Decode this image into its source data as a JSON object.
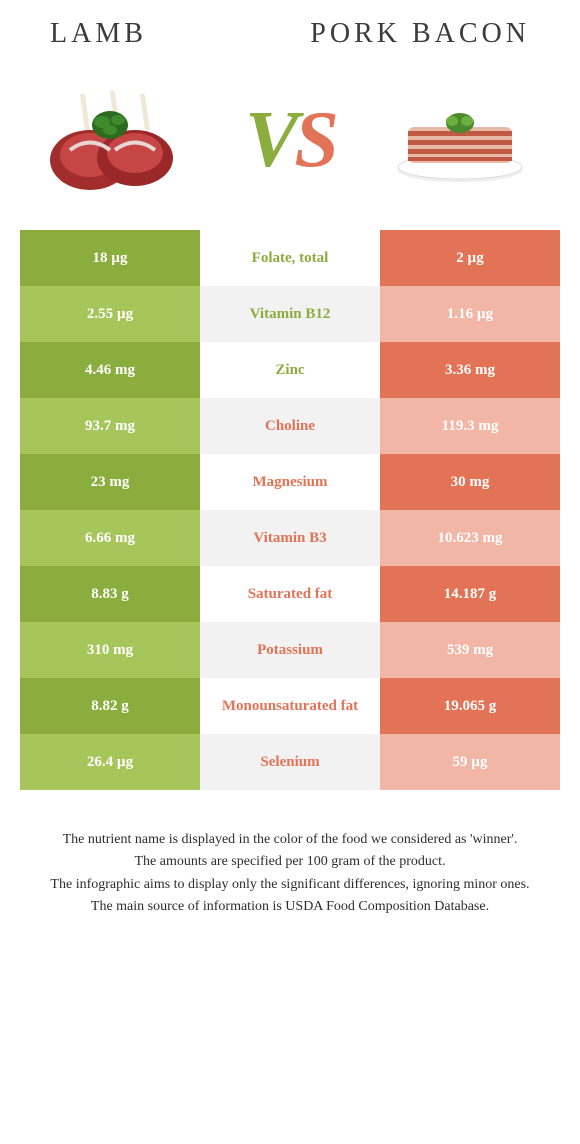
{
  "header": {
    "left_title": "Lamb",
    "right_title": "Pork Bacon"
  },
  "vs": {
    "v": "V",
    "s": "S"
  },
  "colors": {
    "left_main": "#8aad3d",
    "left_alt": "#a6c65b",
    "right_main": "#e37356",
    "right_alt": "#f2b6a6",
    "mid_alt": "#f2f2f2",
    "mid_main": "#ffffff",
    "mid_text_left": "#8aad3d",
    "mid_text_right": "#e37356"
  },
  "rows": [
    {
      "left": "18 µg",
      "label": "Folate, total",
      "right": "2 µg",
      "winner": "left"
    },
    {
      "left": "2.55 µg",
      "label": "Vitamin B12",
      "right": "1.16 µg",
      "winner": "left"
    },
    {
      "left": "4.46 mg",
      "label": "Zinc",
      "right": "3.36 mg",
      "winner": "left"
    },
    {
      "left": "93.7 mg",
      "label": "Choline",
      "right": "119.3 mg",
      "winner": "right"
    },
    {
      "left": "23 mg",
      "label": "Magnesium",
      "right": "30 mg",
      "winner": "right"
    },
    {
      "left": "6.66 mg",
      "label": "Vitamin B3",
      "right": "10.623 mg",
      "winner": "right"
    },
    {
      "left": "8.83 g",
      "label": "Saturated fat",
      "right": "14.187 g",
      "winner": "right"
    },
    {
      "left": "310 mg",
      "label": "Potassium",
      "right": "539 mg",
      "winner": "right"
    },
    {
      "left": "8.82 g",
      "label": "Monounsaturated fat",
      "right": "19.065 g",
      "winner": "right"
    },
    {
      "left": "26.4 µg",
      "label": "Selenium",
      "right": "59 µg",
      "winner": "right"
    }
  ],
  "footnotes": [
    "The nutrient name is displayed in the color of the food we considered as 'winner'.",
    "The amounts are specified per 100 gram of the product.",
    "The infographic aims to display only the significant differences, ignoring minor ones.",
    "The main source of information is USDA Food Composition Database."
  ]
}
